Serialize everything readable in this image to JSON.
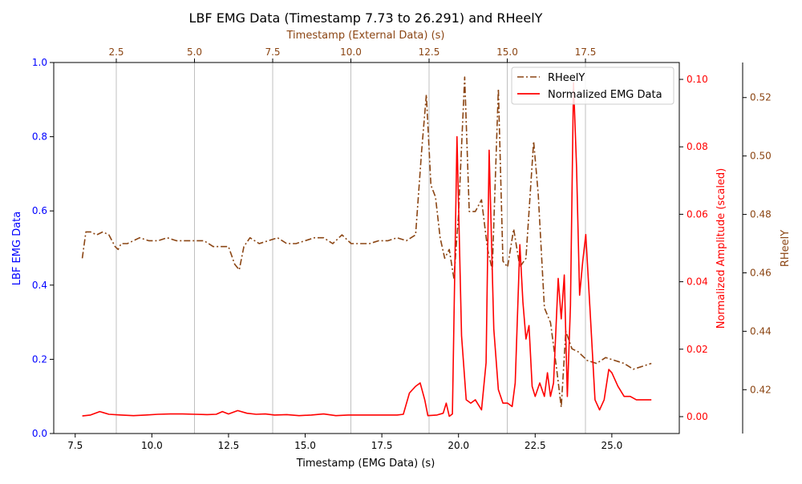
{
  "chart_data": {
    "type": "line",
    "title": "LBF EMG Data (Timestamp 7.73 to 26.291) and RHeelY",
    "xlabel": "Timestamp (EMG Data) (s)",
    "top_xlabel": "Timestamp (External Data) (s)",
    "ylabel_left": "LBF EMG Data",
    "ylabel_right1": "Normalized Amplitude (scaled)",
    "ylabel_right2": "RHeelY",
    "xlim": [
      6.8,
      27.2
    ],
    "ylim_left": [
      0.0,
      1.0
    ],
    "ylim_right1": [
      -0.005,
      0.105
    ],
    "ylim_right2": [
      0.405,
      0.532
    ],
    "top_xlim": [
      0.5,
      20.5
    ],
    "x_ticks": [
      "7.5",
      "10.0",
      "12.5",
      "15.0",
      "17.5",
      "20.0",
      "22.5",
      "25.0"
    ],
    "x_tick_values": [
      7.5,
      10.0,
      12.5,
      15.0,
      17.5,
      20.0,
      22.5,
      25.0
    ],
    "top_x_ticks": [
      "2.5",
      "5.0",
      "7.5",
      "10.0",
      "12.5",
      "15.0",
      "17.5"
    ],
    "top_x_tick_values": [
      2.5,
      5.0,
      7.5,
      10.0,
      12.5,
      15.0,
      17.5
    ],
    "left_ticks": [
      "0.0",
      "0.2",
      "0.4",
      "0.6",
      "0.8",
      "1.0"
    ],
    "left_tick_values": [
      0.0,
      0.2,
      0.4,
      0.6,
      0.8,
      1.0
    ],
    "right1_ticks": [
      "0.00",
      "0.02",
      "0.04",
      "0.06",
      "0.08",
      "0.10"
    ],
    "right1_tick_values": [
      0.0,
      0.02,
      0.04,
      0.06,
      0.08,
      0.1
    ],
    "right2_ticks": [
      "0.42",
      "0.44",
      "0.46",
      "0.48",
      "0.50",
      "0.52"
    ],
    "right2_tick_values": [
      0.42,
      0.44,
      0.46,
      0.48,
      0.5,
      0.52
    ],
    "grid": "vertical lines at top-axis ticks",
    "legend_position": "top-right",
    "colors": {
      "left_axis": "#0000ff",
      "emg": "#ff0000",
      "rheel": "#8b4513",
      "grid": "#b0b0b0"
    },
    "series": [
      {
        "name": "RHeelY",
        "axis": "right2",
        "style": "dash-dot",
        "x": [
          7.73,
          7.85,
          8.0,
          8.2,
          8.4,
          8.6,
          8.8,
          8.9,
          9.0,
          9.2,
          9.4,
          9.6,
          9.9,
          10.2,
          10.5,
          10.8,
          11.1,
          11.4,
          11.7,
          12.0,
          12.3,
          12.5,
          12.7,
          12.85,
          13.0,
          13.2,
          13.5,
          13.8,
          14.1,
          14.4,
          14.7,
          15.0,
          15.3,
          15.6,
          15.9,
          16.2,
          16.5,
          16.8,
          17.1,
          17.4,
          17.7,
          18.0,
          18.3,
          18.6,
          18.8,
          18.95,
          19.1,
          19.25,
          19.4,
          19.55,
          19.7,
          19.85,
          20.0,
          20.2,
          20.35,
          20.55,
          20.75,
          20.95,
          21.1,
          21.3,
          21.45,
          21.6,
          21.8,
          22.0,
          22.2,
          22.45,
          22.6,
          22.8,
          23.0,
          23.2,
          23.35,
          23.5,
          23.7,
          23.9,
          24.2,
          24.5,
          24.8,
          25.1,
          25.4,
          25.7,
          26.0,
          26.291
        ],
        "y": [
          0.465,
          0.474,
          0.474,
          0.473,
          0.474,
          0.473,
          0.469,
          0.468,
          0.47,
          0.47,
          0.471,
          0.472,
          0.471,
          0.471,
          0.472,
          0.471,
          0.471,
          0.471,
          0.471,
          0.469,
          0.469,
          0.469,
          0.463,
          0.461,
          0.469,
          0.472,
          0.47,
          0.471,
          0.472,
          0.47,
          0.47,
          0.471,
          0.472,
          0.472,
          0.47,
          0.473,
          0.47,
          0.47,
          0.47,
          0.471,
          0.471,
          0.472,
          0.471,
          0.473,
          0.502,
          0.521,
          0.49,
          0.486,
          0.472,
          0.465,
          0.468,
          0.458,
          0.48,
          0.527,
          0.481,
          0.481,
          0.485,
          0.468,
          0.461,
          0.523,
          0.464,
          0.462,
          0.475,
          0.462,
          0.465,
          0.505,
          0.487,
          0.448,
          0.443,
          0.427,
          0.414,
          0.44,
          0.434,
          0.433,
          0.43,
          0.429,
          0.431,
          0.43,
          0.429,
          0.427,
          0.428,
          0.429
        ]
      },
      {
        "name": "Normalized EMG Data",
        "axis": "right1",
        "style": "solid",
        "x": [
          7.73,
          8.0,
          8.3,
          8.6,
          9.0,
          9.4,
          9.8,
          10.2,
          10.6,
          11.0,
          11.4,
          11.8,
          12.1,
          12.3,
          12.5,
          12.8,
          13.1,
          13.4,
          13.7,
          14.0,
          14.4,
          14.8,
          15.2,
          15.6,
          16.0,
          16.4,
          16.8,
          17.2,
          17.6,
          18.0,
          18.2,
          18.4,
          18.6,
          18.75,
          18.9,
          19.0,
          19.3,
          19.5,
          19.6,
          19.7,
          19.8,
          19.95,
          20.1,
          20.25,
          20.4,
          20.55,
          20.75,
          20.9,
          21.0,
          21.15,
          21.3,
          21.45,
          21.6,
          21.75,
          21.85,
          22.0,
          22.1,
          22.2,
          22.3,
          22.4,
          22.5,
          22.65,
          22.8,
          22.9,
          23.0,
          23.1,
          23.25,
          23.35,
          23.45,
          23.55,
          23.65,
          23.75,
          23.85,
          23.95,
          24.05,
          24.15,
          24.3,
          24.45,
          24.6,
          24.75,
          24.9,
          25.0,
          25.2,
          25.4,
          25.6,
          25.8,
          26.0,
          26.291
        ],
        "y": [
          0.0002,
          0.0005,
          0.0015,
          0.0007,
          0.0005,
          0.0003,
          0.0005,
          0.0007,
          0.0008,
          0.0008,
          0.0007,
          0.0006,
          0.0007,
          0.0015,
          0.0008,
          0.0018,
          0.001,
          0.0007,
          0.0008,
          0.0005,
          0.0006,
          0.0003,
          0.0005,
          0.0008,
          0.0003,
          0.0005,
          0.0005,
          0.0005,
          0.0005,
          0.0005,
          0.0007,
          0.007,
          0.009,
          0.01,
          0.005,
          0.0003,
          0.0005,
          0.001,
          0.004,
          0.0001,
          0.0008,
          0.083,
          0.024,
          0.005,
          0.004,
          0.005,
          0.002,
          0.016,
          0.079,
          0.026,
          0.008,
          0.004,
          0.004,
          0.003,
          0.01,
          0.051,
          0.034,
          0.023,
          0.027,
          0.009,
          0.006,
          0.01,
          0.006,
          0.013,
          0.006,
          0.01,
          0.041,
          0.029,
          0.042,
          0.006,
          0.033,
          0.099,
          0.074,
          0.036,
          0.046,
          0.054,
          0.03,
          0.005,
          0.002,
          0.005,
          0.014,
          0.013,
          0.009,
          0.006,
          0.006,
          0.005,
          0.005,
          0.005
        ]
      }
    ]
  }
}
